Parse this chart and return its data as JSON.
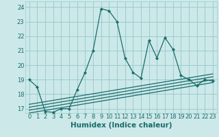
{
  "title": "",
  "xlabel": "Humidex (Indice chaleur)",
  "bg_color": "#cce8e8",
  "grid_color": "#99cccc",
  "line_color": "#1a6b6b",
  "xlim": [
    -0.5,
    23.5
  ],
  "ylim": [
    16.7,
    24.4
  ],
  "xticks": [
    0,
    1,
    2,
    3,
    4,
    5,
    6,
    7,
    8,
    9,
    10,
    11,
    12,
    13,
    14,
    15,
    16,
    17,
    18,
    19,
    20,
    21,
    22,
    23
  ],
  "yticks": [
    17,
    18,
    19,
    20,
    21,
    22,
    23,
    24
  ],
  "main_x": [
    0,
    1,
    2,
    3,
    4,
    5,
    6,
    7,
    8,
    9,
    10,
    11,
    12,
    13,
    14,
    15,
    16,
    17,
    18,
    19,
    20,
    21,
    22,
    23
  ],
  "main_y": [
    19.0,
    18.5,
    16.8,
    16.75,
    17.0,
    17.0,
    18.3,
    19.5,
    21.0,
    23.9,
    23.75,
    23.0,
    20.5,
    19.5,
    19.1,
    21.7,
    20.5,
    21.9,
    21.1,
    19.3,
    19.0,
    18.6,
    19.0,
    18.9
  ],
  "reg_lines": [
    {
      "x": [
        0,
        23
      ],
      "y": [
        17.3,
        19.4
      ]
    },
    {
      "x": [
        0,
        23
      ],
      "y": [
        17.1,
        19.2
      ]
    },
    {
      "x": [
        0,
        23
      ],
      "y": [
        16.9,
        19.0
      ]
    },
    {
      "x": [
        0,
        23
      ],
      "y": [
        16.7,
        18.8
      ]
    }
  ],
  "xlabel_fontsize": 7.5,
  "tick_fontsize": 6.0
}
